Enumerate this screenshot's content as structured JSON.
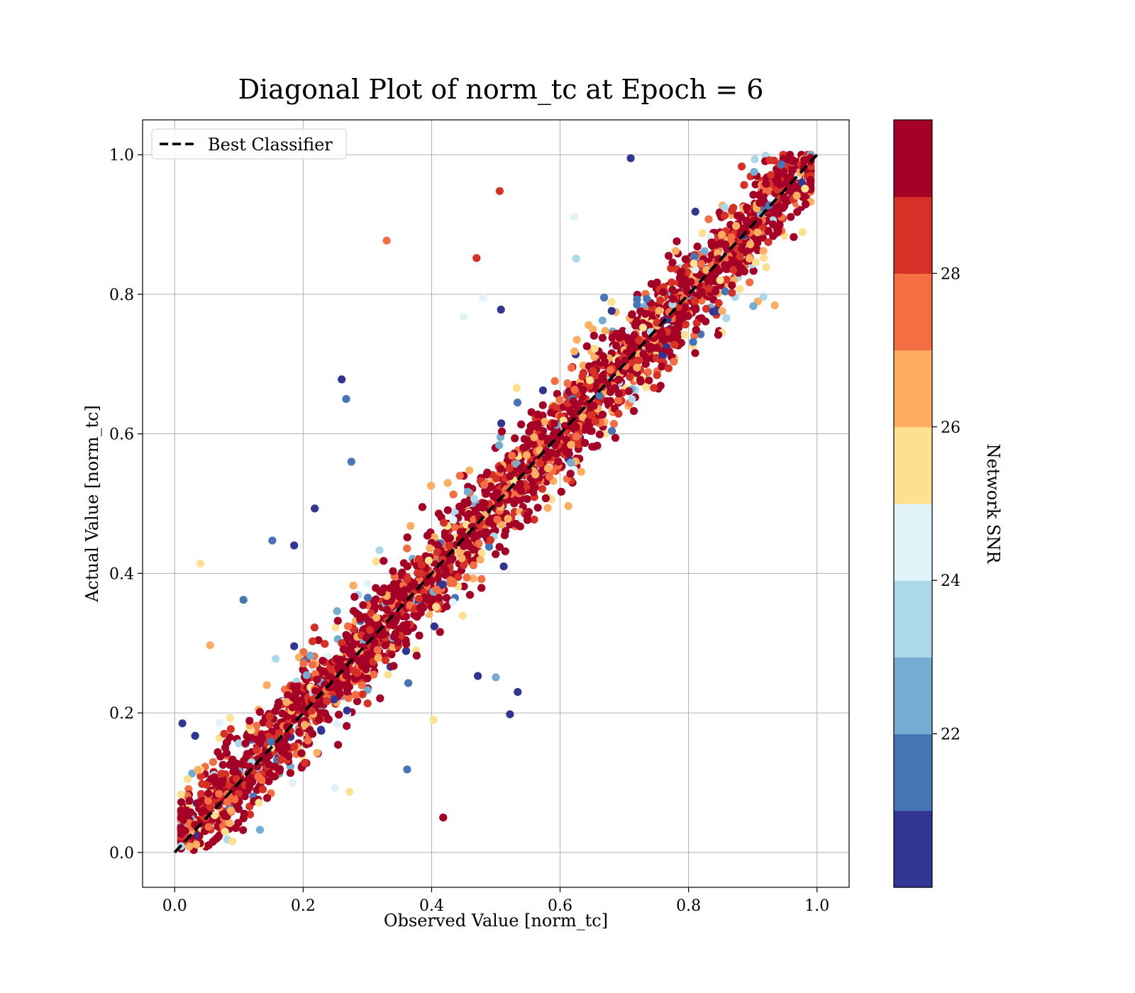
{
  "chart_data": {
    "type": "scatter",
    "title": "Diagonal Plot of norm_tc at Epoch = 6",
    "xlabel": "Observed Value [norm_tc]",
    "ylabel": "Actual Value [norm_tc]",
    "xlim": [
      -0.05,
      1.05
    ],
    "ylim": [
      -0.05,
      1.05
    ],
    "xticks": [
      "0.0",
      "0.2",
      "0.4",
      "0.6",
      "0.8",
      "1.0"
    ],
    "yticks": [
      "0.0",
      "0.2",
      "0.4",
      "0.6",
      "0.8",
      "1.0"
    ],
    "grid": true,
    "legend": {
      "placement": "top-left",
      "entries": [
        "Best Classifier"
      ]
    },
    "reference_line": {
      "name": "Best Classifier",
      "style": "dashed",
      "color": "#000000",
      "x": [
        0,
        1
      ],
      "y": [
        0,
        1
      ]
    },
    "colorbar": {
      "label": "Network SNR",
      "range": [
        20,
        30
      ],
      "ticks": [
        "22",
        "24",
        "26",
        "28"
      ],
      "colors": [
        "#313695",
        "#4575b4",
        "#74add1",
        "#abd9e9",
        "#e0f3f8",
        "#fee090",
        "#fdae61",
        "#f46d43",
        "#d73027",
        "#a50026"
      ]
    },
    "series_note_points": [
      {
        "x": 0.506,
        "y": 0.948,
        "snr": 28.5
      },
      {
        "x": 0.33,
        "y": 0.877,
        "snr": 27.5
      },
      {
        "x": 0.47,
        "y": 0.852,
        "snr": 28.5
      },
      {
        "x": 0.26,
        "y": 0.678,
        "snr": 20.5
      },
      {
        "x": 0.267,
        "y": 0.65,
        "snr": 21.5
      },
      {
        "x": 0.275,
        "y": 0.56,
        "snr": 21.5
      },
      {
        "x": 0.218,
        "y": 0.493,
        "snr": 20.5
      },
      {
        "x": 0.04,
        "y": 0.414,
        "snr": 25.5
      },
      {
        "x": 0.152,
        "y": 0.447,
        "snr": 21.5
      },
      {
        "x": 0.186,
        "y": 0.44,
        "snr": 20.5
      },
      {
        "x": 0.107,
        "y": 0.362,
        "snr": 21.5
      },
      {
        "x": 0.055,
        "y": 0.297,
        "snr": 26.5
      },
      {
        "x": 0.012,
        "y": 0.185,
        "snr": 20.5
      },
      {
        "x": 0.362,
        "y": 0.119,
        "snr": 21.5
      },
      {
        "x": 0.472,
        "y": 0.253,
        "snr": 20.5
      },
      {
        "x": 0.5,
        "y": 0.251,
        "snr": 22.5
      },
      {
        "x": 0.534,
        "y": 0.23,
        "snr": 20.5
      },
      {
        "x": 0.522,
        "y": 0.198,
        "snr": 20.5
      },
      {
        "x": 0.403,
        "y": 0.19,
        "snr": 25.5
      },
      {
        "x": 0.418,
        "y": 0.05,
        "snr": 29.5
      },
      {
        "x": 0.272,
        "y": 0.087,
        "snr": 25.5
      },
      {
        "x": 0.25,
        "y": 0.092,
        "snr": 24.5
      },
      {
        "x": 0.622,
        "y": 0.911,
        "snr": 24.5
      },
      {
        "x": 0.625,
        "y": 0.851,
        "snr": 23.5
      },
      {
        "x": 0.71,
        "y": 0.995,
        "snr": 20.5
      },
      {
        "x": 0.45,
        "y": 0.768,
        "snr": 24.5
      },
      {
        "x": 0.48,
        "y": 0.795,
        "snr": 24.5
      },
      {
        "x": 0.508,
        "y": 0.778,
        "snr": 20.5
      }
    ]
  }
}
